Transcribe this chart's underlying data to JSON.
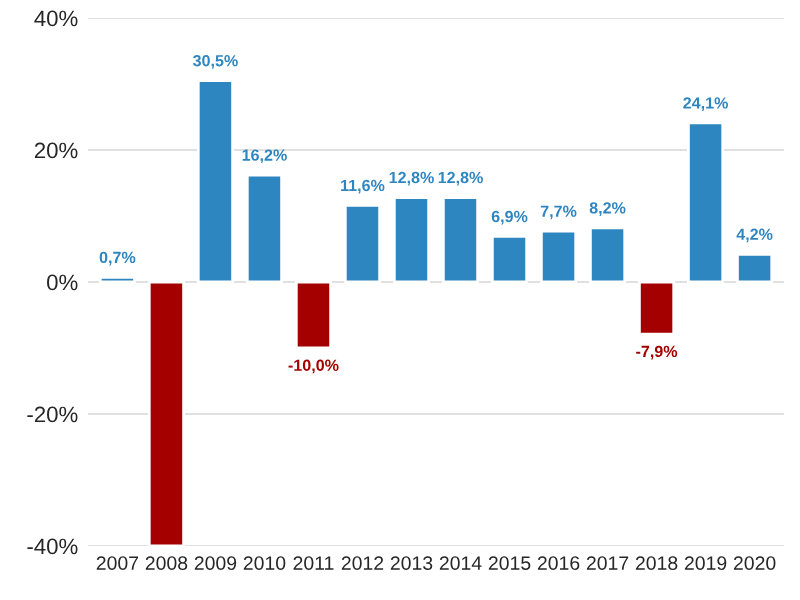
{
  "chart_data": {
    "type": "bar",
    "categories": [
      "2007",
      "2008",
      "2009",
      "2010",
      "2011",
      "2012",
      "2013",
      "2014",
      "2015",
      "2016",
      "2017",
      "2018",
      "2019",
      "2020"
    ],
    "values": [
      0.7,
      -40,
      30.5,
      16.2,
      -10.0,
      11.6,
      12.8,
      12.8,
      6.9,
      7.7,
      8.2,
      -7.9,
      24.1,
      4.2
    ],
    "value_labels": [
      "0,7%",
      null,
      "30,5%",
      "16,2%",
      "-10,0%",
      "11,6%",
      "12,8%",
      "12,8%",
      "6,9%",
      "7,7%",
      "8,2%",
      "-7,9%",
      "24,1%",
      "4,2%"
    ],
    "colors": [
      "#2e86c1",
      "#a50000",
      "#2e86c1",
      "#2e86c1",
      "#a50000",
      "#2e86c1",
      "#2e86c1",
      "#2e86c1",
      "#2e86c1",
      "#2e86c1",
      "#2e86c1",
      "#a50000",
      "#2e86c1",
      "#2e86c1"
    ],
    "ylim": [
      -40,
      40
    ],
    "yticks": [
      {
        "value": -40,
        "label": "-40%"
      },
      {
        "value": -20,
        "label": "-20%"
      },
      {
        "value": 0,
        "label": "0%"
      },
      {
        "value": 20,
        "label": "20%"
      },
      {
        "value": 40,
        "label": "40%"
      }
    ],
    "grid": "y"
  }
}
